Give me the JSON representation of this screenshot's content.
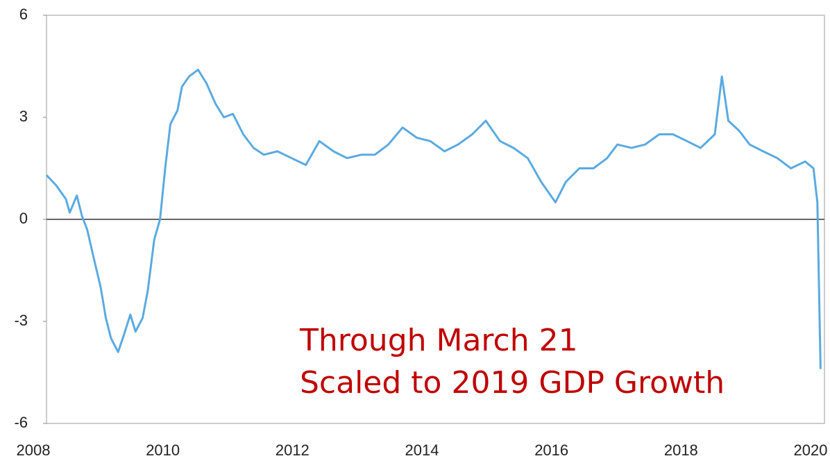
{
  "chart_data": {
    "type": "line",
    "annotations": [
      "Through March 21",
      "Scaled to 2019 GDP Growth"
    ],
    "x": [
      2008.2,
      2008.35,
      2008.5,
      2008.56,
      2008.67,
      2008.75,
      2008.83,
      2008.94,
      2009.04,
      2009.12,
      2009.2,
      2009.31,
      2009.4,
      2009.5,
      2009.58,
      2009.69,
      2009.77,
      2009.87,
      2009.96,
      2010.04,
      2010.12,
      2010.23,
      2010.3,
      2010.41,
      2010.55,
      2010.68,
      2010.82,
      2010.95,
      2011.09,
      2011.25,
      2011.41,
      2011.57,
      2011.78,
      2012.0,
      2012.22,
      2012.43,
      2012.65,
      2012.86,
      2013.08,
      2013.29,
      2013.5,
      2013.72,
      2013.94,
      2014.15,
      2014.37,
      2014.58,
      2014.8,
      2015.01,
      2015.23,
      2015.44,
      2015.66,
      2015.87,
      2016.09,
      2016.25,
      2016.46,
      2016.68,
      2016.89,
      2017.05,
      2017.27,
      2017.48,
      2017.7,
      2017.91,
      2018.13,
      2018.34,
      2018.56,
      2018.67,
      2018.77,
      2018.94,
      2019.1,
      2019.31,
      2019.53,
      2019.74,
      2019.96,
      2020.09,
      2020.15,
      2020.2
    ],
    "series": [
      {
        "color": "#5aaae0",
        "values": [
          1.3,
          1.0,
          0.6,
          0.2,
          0.7,
          0.1,
          -0.3,
          -1.2,
          -2.0,
          -2.9,
          -3.5,
          -3.9,
          -3.4,
          -2.8,
          -3.3,
          -2.9,
          -2.1,
          -0.6,
          0.0,
          1.5,
          2.8,
          3.2,
          3.9,
          4.2,
          4.4,
          4.0,
          3.4,
          3.0,
          3.1,
          2.5,
          2.1,
          1.9,
          2.0,
          1.8,
          1.6,
          2.3,
          2.0,
          1.8,
          1.9,
          1.9,
          2.2,
          2.7,
          2.4,
          2.3,
          2.0,
          2.2,
          2.5,
          2.9,
          2.3,
          2.1,
          1.8,
          1.1,
          0.5,
          1.1,
          1.5,
          1.5,
          1.8,
          2.2,
          2.1,
          2.2,
          2.5,
          2.5,
          2.3,
          2.1,
          2.5,
          4.2,
          2.9,
          2.6,
          2.2,
          2.0,
          1.8,
          1.5,
          1.7,
          1.5,
          0.5,
          -4.4
        ]
      }
    ],
    "xlim": [
      2008.2,
      2020.26
    ],
    "xticks": [
      2008,
      2010,
      2012,
      2014,
      2016,
      2018,
      2020
    ],
    "ylim": [
      -6,
      6
    ],
    "yticks": [
      -6,
      -3,
      0,
      3,
      6
    ]
  }
}
